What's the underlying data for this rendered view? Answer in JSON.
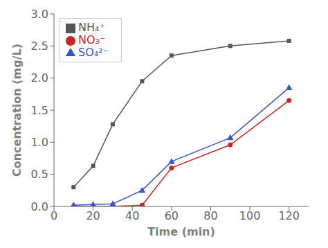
{
  "chart_data": {
    "type": "line",
    "xlabel": "Time (min)",
    "ylabel": "Concentration (mg/L)",
    "x": [
      10,
      20,
      30,
      45,
      60,
      90,
      120
    ],
    "series": [
      {
        "name": "NH₄⁺",
        "color": "#555555",
        "marker": "square",
        "values": [
          0.3,
          0.63,
          1.28,
          1.95,
          2.35,
          2.5,
          2.58
        ]
      },
      {
        "name": "NO₃⁻",
        "color": "#cc2222",
        "marker": "circle",
        "values": [
          0.0,
          0.0,
          0.0,
          0.02,
          0.6,
          0.96,
          1.65
        ]
      },
      {
        "name": "SO₄²⁻",
        "color": "#3355cc",
        "marker": "triangle",
        "values": [
          0.02,
          0.03,
          0.04,
          0.25,
          0.7,
          1.07,
          1.85
        ]
      }
    ],
    "xlim": [
      0,
      130
    ],
    "ylim": [
      0,
      3.0
    ],
    "xticks": [
      0,
      20,
      40,
      60,
      80,
      100,
      120
    ],
    "yticks": [
      {
        "value": 0.0,
        "label": "0.0"
      },
      0.5,
      {
        "value": 1.0,
        "label": "1.0"
      },
      1.5,
      {
        "value": 2.0,
        "label": "2.0"
      },
      2.5,
      {
        "value": 3.0,
        "label": "3.0"
      }
    ],
    "grid": false,
    "legend": "upper left"
  }
}
